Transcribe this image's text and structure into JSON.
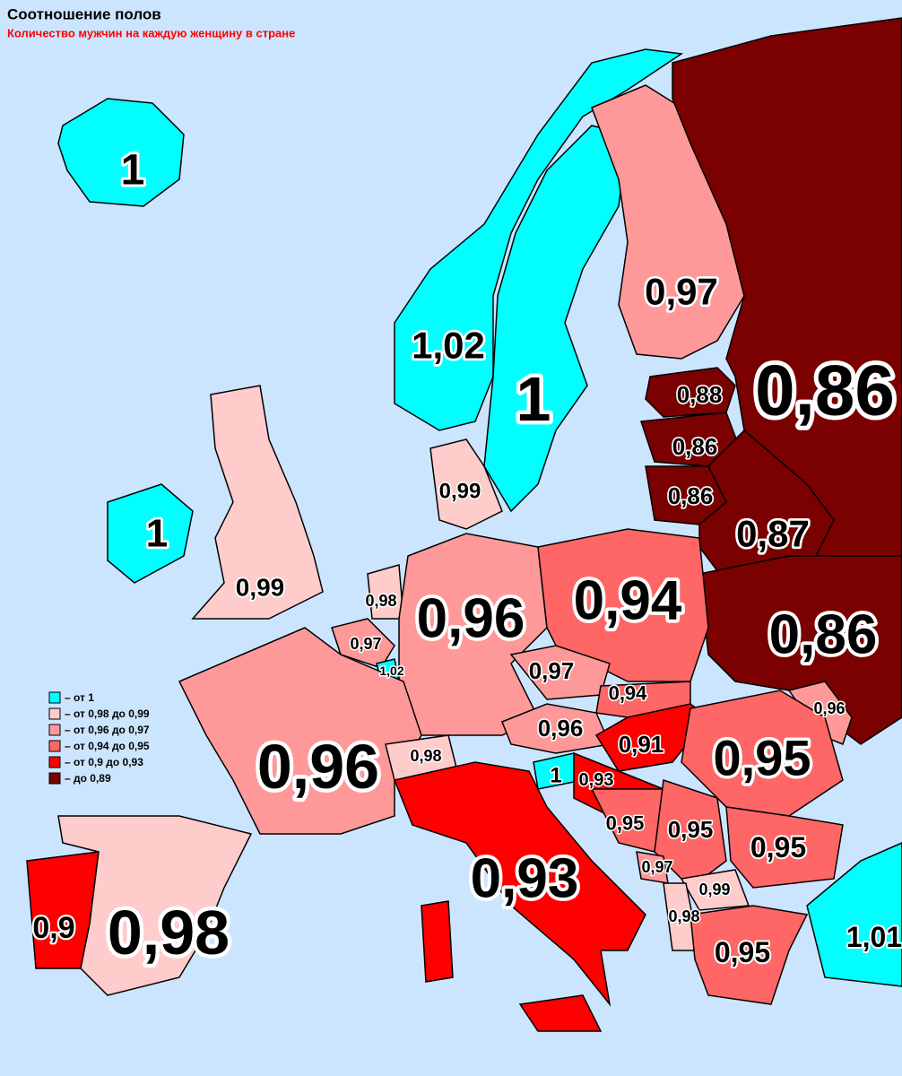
{
  "title": "Соотношение полов",
  "subtitle": "Количество мужчин на каждую женщину в стране",
  "legend": [
    {
      "label": "– от 1",
      "color": "#00ffff"
    },
    {
      "label": "– от 0,98 до 0,99",
      "color": "#ffcccc"
    },
    {
      "label": "– от 0,96 до 0,97",
      "color": "#ff9999"
    },
    {
      "label": "– от 0,94 до 0,95",
      "color": "#ff6666"
    },
    {
      "label": "– от 0,9 до 0,93",
      "color": "#ff0000"
    },
    {
      "label": "– до 0,89",
      "color": "#7b0000"
    }
  ],
  "regions": [
    {
      "label": "1",
      "color": "#00ffff"
    },
    {
      "label": "1,02",
      "color": "#00ffff"
    },
    {
      "label": "1",
      "color": "#00ffff"
    },
    {
      "label": "0,97",
      "color": "#ff9999"
    },
    {
      "label": "0,86",
      "color": "#7b0000"
    },
    {
      "label": "0,88",
      "color": "#7b0000"
    },
    {
      "label": "0,86",
      "color": "#7b0000"
    },
    {
      "label": "0,86",
      "color": "#7b0000"
    },
    {
      "label": "0,87",
      "color": "#7b0000"
    },
    {
      "label": "0,86",
      "color": "#7b0000"
    },
    {
      "label": "0,99",
      "color": "#ffcccc"
    },
    {
      "label": "1",
      "color": "#00ffff"
    },
    {
      "label": "0,99",
      "color": "#ffcccc"
    },
    {
      "label": "0,98",
      "color": "#ffcccc"
    },
    {
      "label": "0,97",
      "color": "#ff9999"
    },
    {
      "label": "1,02",
      "color": "#00ffff"
    },
    {
      "label": "0,96",
      "color": "#ff9999"
    },
    {
      "label": "0,94",
      "color": "#ff6666"
    },
    {
      "label": "0,97",
      "color": "#ff9999"
    },
    {
      "label": "0,96",
      "color": "#ff9999"
    },
    {
      "label": "0,94",
      "color": "#ff6666"
    },
    {
      "label": "0,91",
      "color": "#ff0000"
    },
    {
      "label": "0,96",
      "color": "#ff9999"
    },
    {
      "label": "0,95",
      "color": "#ff6666"
    },
    {
      "label": "0,96",
      "color": "#ff9999"
    },
    {
      "label": "0,98",
      "color": "#ffcccc"
    },
    {
      "label": "1",
      "color": "#00ffff"
    },
    {
      "label": "0,93",
      "color": "#ff0000"
    },
    {
      "label": "0,93",
      "color": "#ff0000"
    },
    {
      "label": "0,95",
      "color": "#ff6666"
    },
    {
      "label": "0,95",
      "color": "#ff6666"
    },
    {
      "label": "0,95",
      "color": "#ff6666"
    },
    {
      "label": "0,97",
      "color": "#ff9999"
    },
    {
      "label": "0,99",
      "color": "#ffcccc"
    },
    {
      "label": "0,98",
      "color": "#ffcccc"
    },
    {
      "label": "0,95",
      "color": "#ff6666"
    },
    {
      "label": "1,01",
      "color": "#00ffff"
    },
    {
      "label": "0,9",
      "color": "#ff0000"
    },
    {
      "label": "0,98",
      "color": "#ffcccc"
    }
  ]
}
